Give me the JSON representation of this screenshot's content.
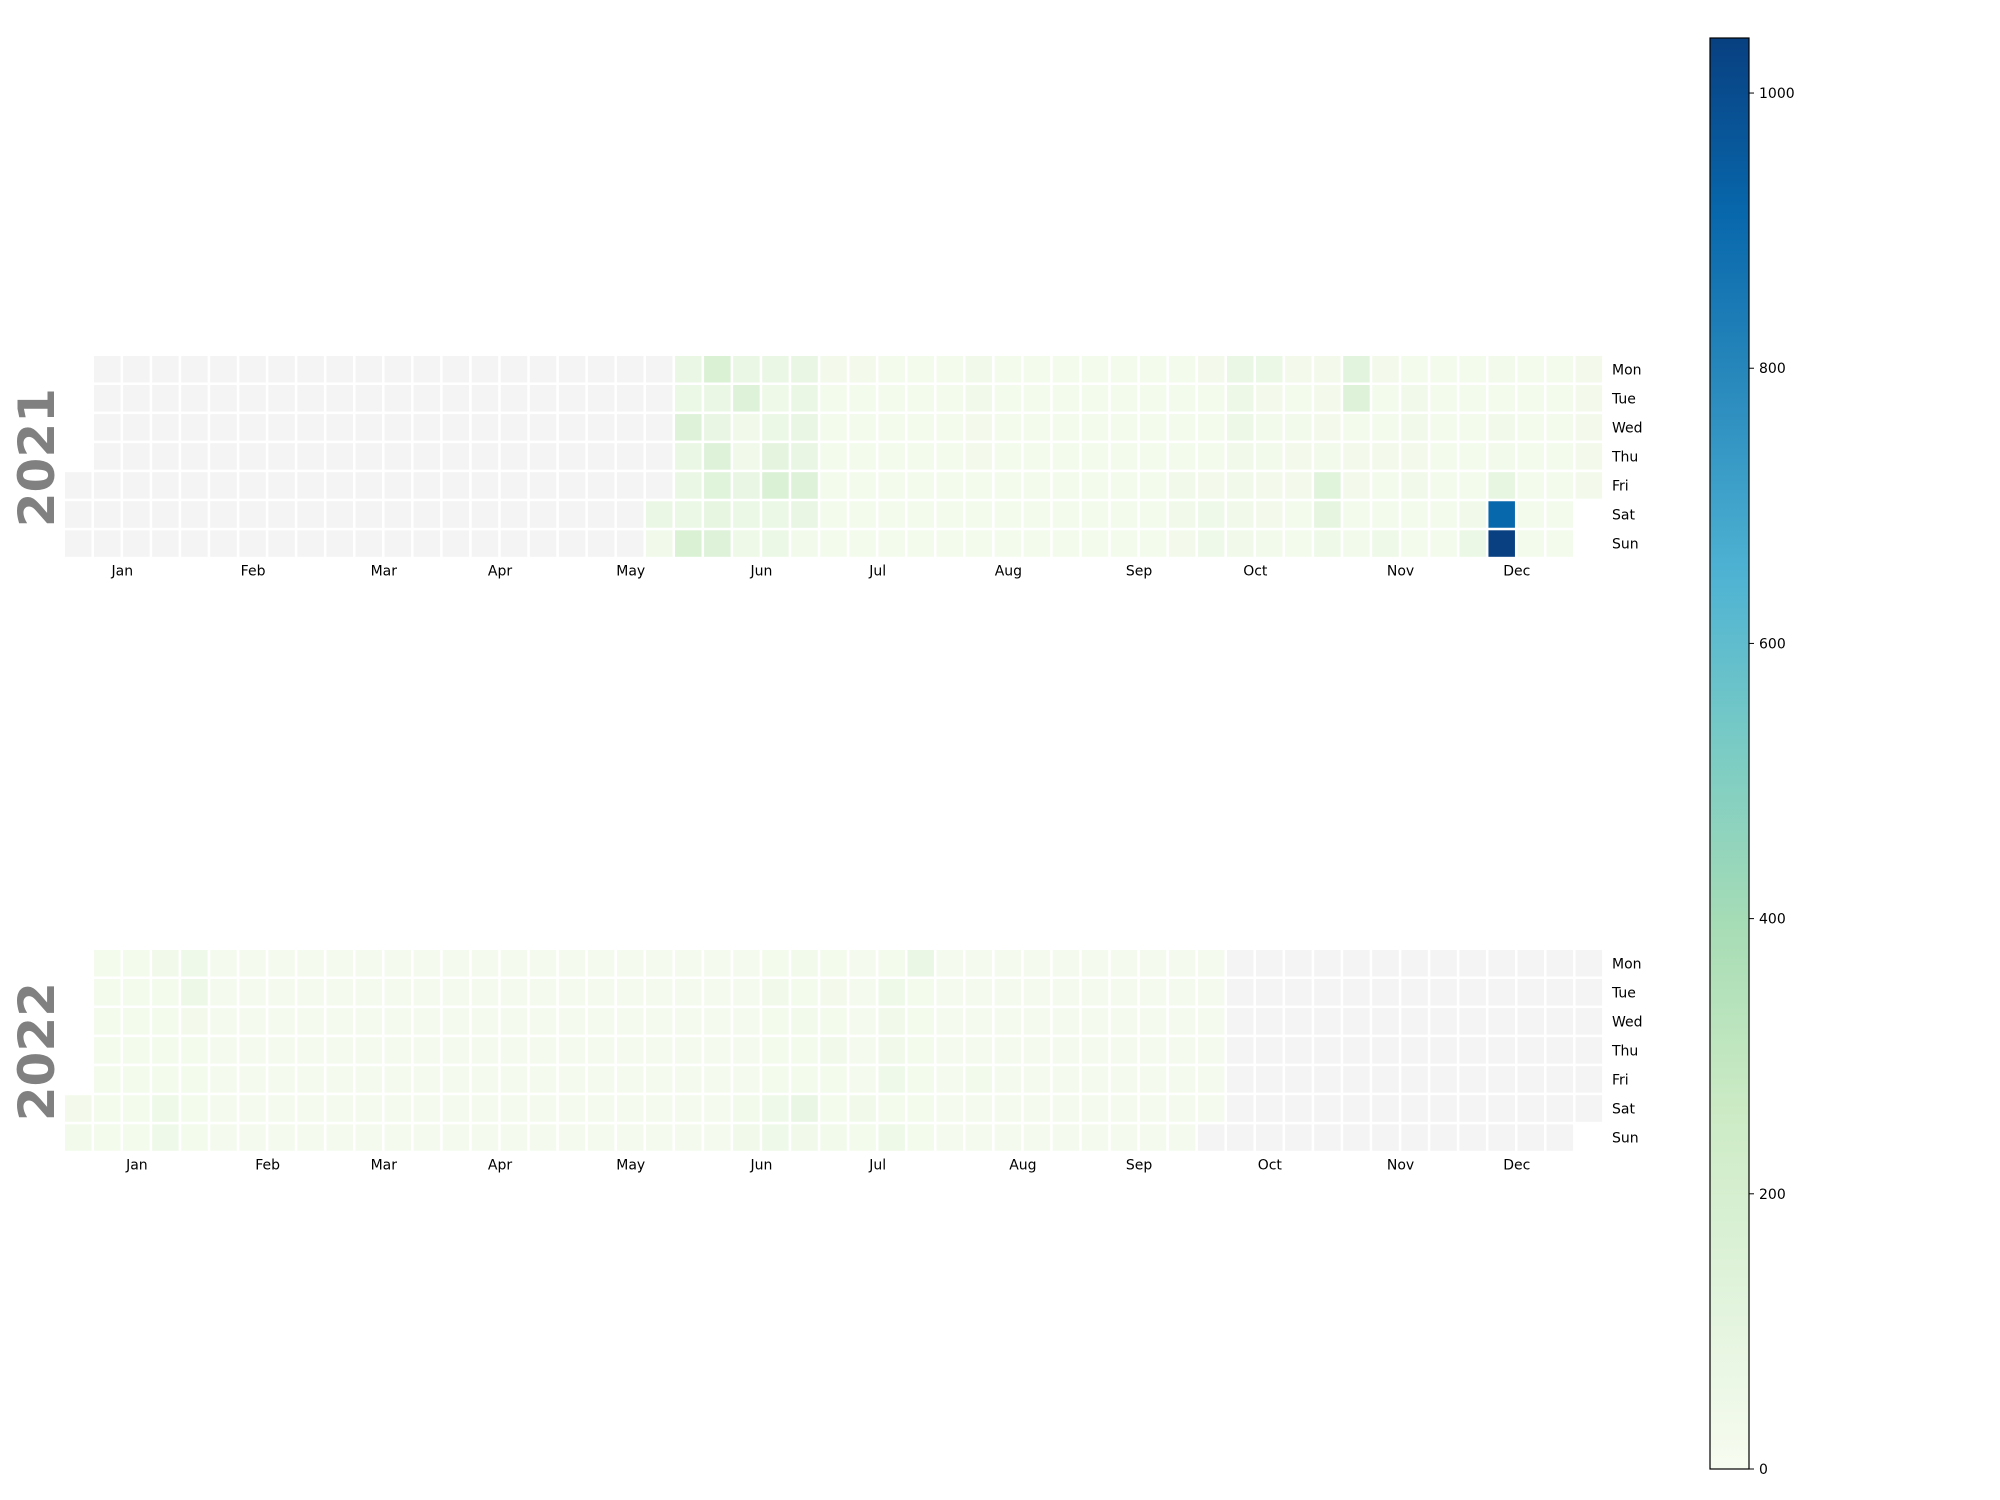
{
  "chart_data": {
    "type": "heatmap",
    "subtype": "calendar",
    "colormap": "GnBu",
    "missing_color": "#f4f4f4",
    "value_range": [
      0,
      1040
    ],
    "colorbar": {
      "ticks": [
        0,
        200,
        400,
        600,
        800,
        1000
      ]
    },
    "day_labels": [
      "Mon",
      "Tue",
      "Wed",
      "Thu",
      "Fri",
      "Sat",
      "Sun"
    ],
    "month_labels": [
      "Jan",
      "Feb",
      "Mar",
      "Apr",
      "May",
      "Jun",
      "Jul",
      "Aug",
      "Sep",
      "Oct",
      "Nov",
      "Dec"
    ],
    "years": [
      {
        "year": "2021",
        "weeks": [
          [
            null,
            null,
            null,
            null,
            null,
            null,
            null
          ],
          [
            null,
            null,
            null,
            null,
            null,
            null,
            null
          ],
          [
            null,
            null,
            null,
            null,
            null,
            null,
            null
          ],
          [
            null,
            null,
            null,
            null,
            null,
            null,
            null
          ],
          [
            null,
            null,
            null,
            null,
            null,
            null,
            null
          ],
          [
            null,
            null,
            null,
            null,
            null,
            null,
            null
          ],
          [
            null,
            null,
            null,
            null,
            null,
            null,
            null
          ],
          [
            null,
            null,
            null,
            null,
            null,
            null,
            null
          ],
          [
            null,
            null,
            null,
            null,
            null,
            null,
            null
          ],
          [
            null,
            null,
            null,
            null,
            null,
            null,
            null
          ],
          [
            null,
            null,
            null,
            null,
            null,
            null,
            null
          ],
          [
            null,
            null,
            null,
            null,
            null,
            null,
            null
          ],
          [
            null,
            null,
            null,
            null,
            null,
            null,
            null
          ],
          [
            null,
            null,
            null,
            null,
            null,
            null,
            null
          ],
          [
            null,
            null,
            null,
            null,
            null,
            null,
            null
          ],
          [
            null,
            null,
            null,
            null,
            null,
            null,
            null
          ],
          [
            null,
            null,
            null,
            null,
            null,
            null,
            null
          ],
          [
            null,
            null,
            null,
            null,
            null,
            null,
            null
          ],
          [
            null,
            null,
            null,
            null,
            null,
            null,
            null
          ],
          [
            null,
            null,
            null,
            null,
            null,
            null,
            null
          ],
          [
            null,
            null,
            null,
            null,
            null,
            70,
            40
          ],
          [
            70,
            60,
            140,
            70,
            70,
            60,
            170
          ],
          [
            170,
            70,
            80,
            150,
            130,
            90,
            150
          ],
          [
            70,
            150,
            40,
            40,
            80,
            60,
            50
          ],
          [
            70,
            50,
            60,
            110,
            160,
            60,
            60
          ],
          [
            80,
            70,
            80,
            80,
            150,
            80,
            30
          ],
          [
            25,
            20,
            20,
            20,
            20,
            20,
            20
          ],
          [
            25,
            20,
            20,
            20,
            20,
            20,
            20
          ],
          [
            20,
            20,
            20,
            20,
            20,
            20,
            20
          ],
          [
            20,
            20,
            20,
            20,
            20,
            20,
            20
          ],
          [
            20,
            20,
            20,
            20,
            20,
            20,
            20
          ],
          [
            35,
            35,
            25,
            25,
            20,
            20,
            20
          ],
          [
            20,
            20,
            20,
            20,
            20,
            20,
            20
          ],
          [
            20,
            20,
            20,
            20,
            20,
            20,
            20
          ],
          [
            20,
            20,
            20,
            20,
            20,
            20,
            20
          ],
          [
            20,
            20,
            20,
            20,
            20,
            20,
            20
          ],
          [
            20,
            20,
            20,
            20,
            20,
            20,
            20
          ],
          [
            20,
            20,
            20,
            20,
            20,
            20,
            20
          ],
          [
            20,
            20,
            20,
            20,
            35,
            35,
            25
          ],
          [
            25,
            20,
            20,
            20,
            25,
            45,
            45
          ],
          [
            70,
            55,
            55,
            35,
            35,
            35,
            40
          ],
          [
            60,
            25,
            30,
            30,
            25,
            25,
            30
          ],
          [
            25,
            20,
            30,
            25,
            25,
            20,
            20
          ],
          [
            25,
            25,
            25,
            30,
            130,
            100,
            50
          ],
          [
            120,
            150,
            20,
            25,
            25,
            20,
            30
          ],
          [
            25,
            20,
            20,
            25,
            20,
            20,
            50
          ],
          [
            20,
            40,
            40,
            25,
            35,
            20,
            20
          ],
          [
            20,
            20,
            20,
            20,
            20,
            20,
            20
          ],
          [
            20,
            20,
            20,
            20,
            20,
            35,
            60
          ],
          [
            30,
            20,
            35,
            30,
            90,
            910,
            1040
          ],
          [
            20,
            20,
            20,
            20,
            20,
            20,
            20
          ],
          [
            20,
            20,
            20,
            20,
            20,
            20,
            20
          ],
          [
            25,
            25,
            25,
            25,
            25,
            null,
            null
          ]
        ]
      },
      {
        "year": "2022",
        "weeks": [
          [
            null,
            null,
            null,
            null,
            null,
            25,
            30
          ],
          [
            20,
            20,
            20,
            20,
            20,
            20,
            20
          ],
          [
            20,
            20,
            20,
            20,
            20,
            20,
            20
          ],
          [
            35,
            20,
            20,
            20,
            20,
            50,
            45
          ],
          [
            45,
            55,
            25,
            20,
            20,
            20,
            20
          ],
          [
            15,
            15,
            15,
            15,
            15,
            15,
            15
          ],
          [
            15,
            15,
            15,
            15,
            15,
            15,
            15
          ],
          [
            15,
            15,
            15,
            15,
            15,
            15,
            15
          ],
          [
            15,
            15,
            15,
            15,
            15,
            15,
            15
          ],
          [
            15,
            15,
            15,
            15,
            15,
            15,
            15
          ],
          [
            15,
            15,
            15,
            15,
            15,
            15,
            15
          ],
          [
            15,
            15,
            15,
            15,
            15,
            15,
            15
          ],
          [
            15,
            15,
            15,
            15,
            15,
            15,
            15
          ],
          [
            15,
            15,
            15,
            15,
            15,
            15,
            15
          ],
          [
            15,
            15,
            15,
            15,
            15,
            15,
            15
          ],
          [
            15,
            15,
            15,
            15,
            15,
            15,
            15
          ],
          [
            15,
            15,
            15,
            15,
            15,
            15,
            15
          ],
          [
            15,
            15,
            15,
            15,
            15,
            15,
            15
          ],
          [
            15,
            15,
            15,
            15,
            15,
            15,
            15
          ],
          [
            15,
            15,
            15,
            15,
            15,
            15,
            15
          ],
          [
            15,
            15,
            15,
            15,
            15,
            15,
            15
          ],
          [
            15,
            15,
            15,
            15,
            15,
            15,
            15
          ],
          [
            15,
            15,
            15,
            15,
            15,
            15,
            15
          ],
          [
            15,
            15,
            15,
            15,
            15,
            30,
            40
          ],
          [
            20,
            35,
            20,
            20,
            20,
            45,
            45
          ],
          [
            30,
            20,
            30,
            20,
            20,
            80,
            40
          ],
          [
            20,
            25,
            20,
            40,
            20,
            20,
            30
          ],
          [
            15,
            15,
            15,
            15,
            15,
            35,
            20
          ],
          [
            20,
            50,
            40,
            40,
            45,
            20,
            50
          ],
          [
            70,
            20,
            20,
            20,
            20,
            20,
            20
          ],
          [
            15,
            15,
            15,
            15,
            15,
            15,
            15
          ],
          [
            15,
            15,
            15,
            15,
            30,
            15,
            15
          ],
          [
            15,
            15,
            15,
            15,
            15,
            15,
            15
          ],
          [
            15,
            15,
            15,
            15,
            15,
            15,
            15
          ],
          [
            15,
            15,
            15,
            15,
            15,
            15,
            15
          ],
          [
            15,
            15,
            15,
            15,
            15,
            15,
            15
          ],
          [
            15,
            15,
            15,
            15,
            15,
            15,
            15
          ],
          [
            15,
            15,
            15,
            15,
            15,
            15,
            15
          ],
          [
            15,
            15,
            15,
            15,
            15,
            15,
            15
          ],
          [
            15,
            15,
            15,
            15,
            15,
            15,
            null
          ],
          [
            null,
            null,
            null,
            null,
            null,
            null,
            null
          ],
          [
            null,
            null,
            null,
            null,
            null,
            null,
            null
          ],
          [
            null,
            null,
            null,
            null,
            null,
            null,
            null
          ],
          [
            null,
            null,
            null,
            null,
            null,
            null,
            null
          ],
          [
            null,
            null,
            null,
            null,
            null,
            null,
            null
          ],
          [
            null,
            null,
            null,
            null,
            null,
            null,
            null
          ],
          [
            null,
            null,
            null,
            null,
            null,
            null,
            null
          ],
          [
            null,
            null,
            null,
            null,
            null,
            null,
            null
          ],
          [
            null,
            null,
            null,
            null,
            null,
            null,
            null
          ],
          [
            null,
            null,
            null,
            null,
            null,
            null,
            null
          ],
          [
            null,
            null,
            null,
            null,
            null,
            null,
            null
          ],
          [
            null,
            null,
            null,
            null,
            null,
            null,
            null
          ],
          [
            null,
            null,
            null,
            null,
            null,
            null,
            null
          ]
        ]
      }
    ]
  }
}
